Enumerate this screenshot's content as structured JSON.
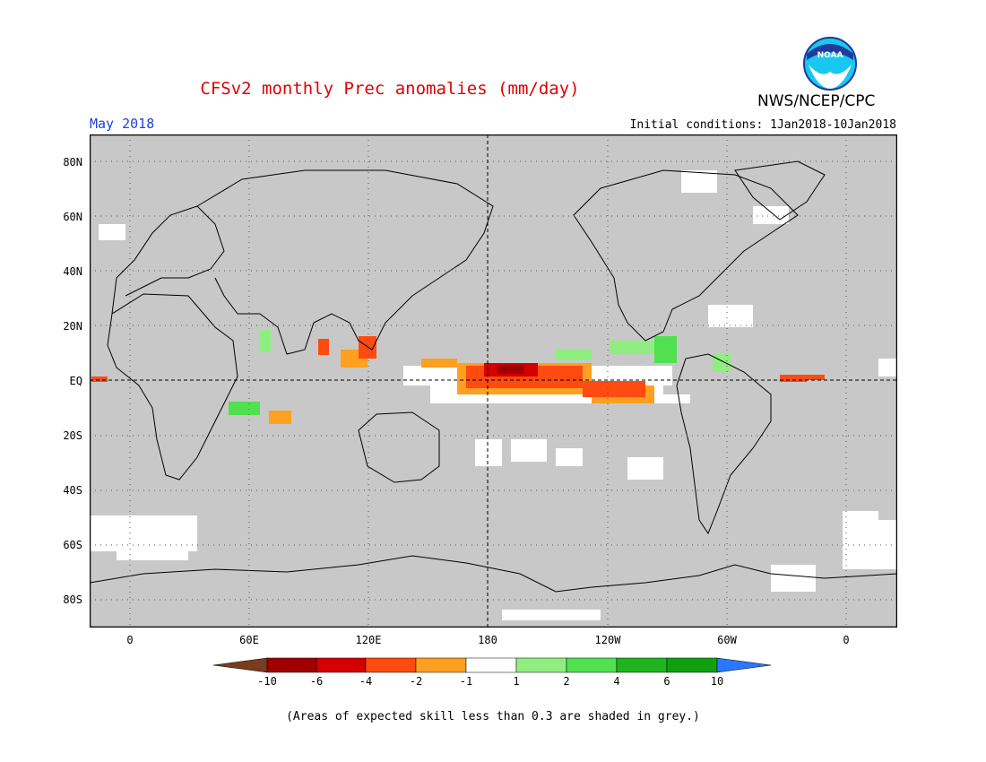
{
  "title": "CFSv2 monthly Prec anomalies (mm/day)",
  "month_label": "May 2018",
  "initial_conditions": "Initial conditions: 1Jan2018-10Jan2018",
  "agency": "NWS/NCEP/CPC",
  "logo_text": "NOAA",
  "footnote": "(Areas of expected skill less than 0.3 are shaded in grey.)",
  "map": {
    "lat_labels": [
      "80N",
      "60N",
      "40N",
      "20N",
      "EQ",
      "20S",
      "40S",
      "60S",
      "80S"
    ],
    "lon_labels": [
      "0",
      "60E",
      "120E",
      "180",
      "120W",
      "60W",
      "0"
    ],
    "colors": {
      "land_ocean_masked": "#c8c8c8",
      "unmasked_neutral": "#ffffff",
      "coast": "#000000"
    }
  },
  "colorbar": {
    "labels": [
      "-10",
      "-6",
      "-4",
      "-2",
      "-1",
      "1",
      "2",
      "4",
      "6",
      "10"
    ],
    "colors": [
      "#7a3c1e",
      "#a00000",
      "#d40000",
      "#ff4a10",
      "#ffa020",
      "#ffffff",
      "#90ee80",
      "#50e050",
      "#20b420",
      "#10a010",
      "#1a5ee6",
      "#2a78ff"
    ]
  }
}
